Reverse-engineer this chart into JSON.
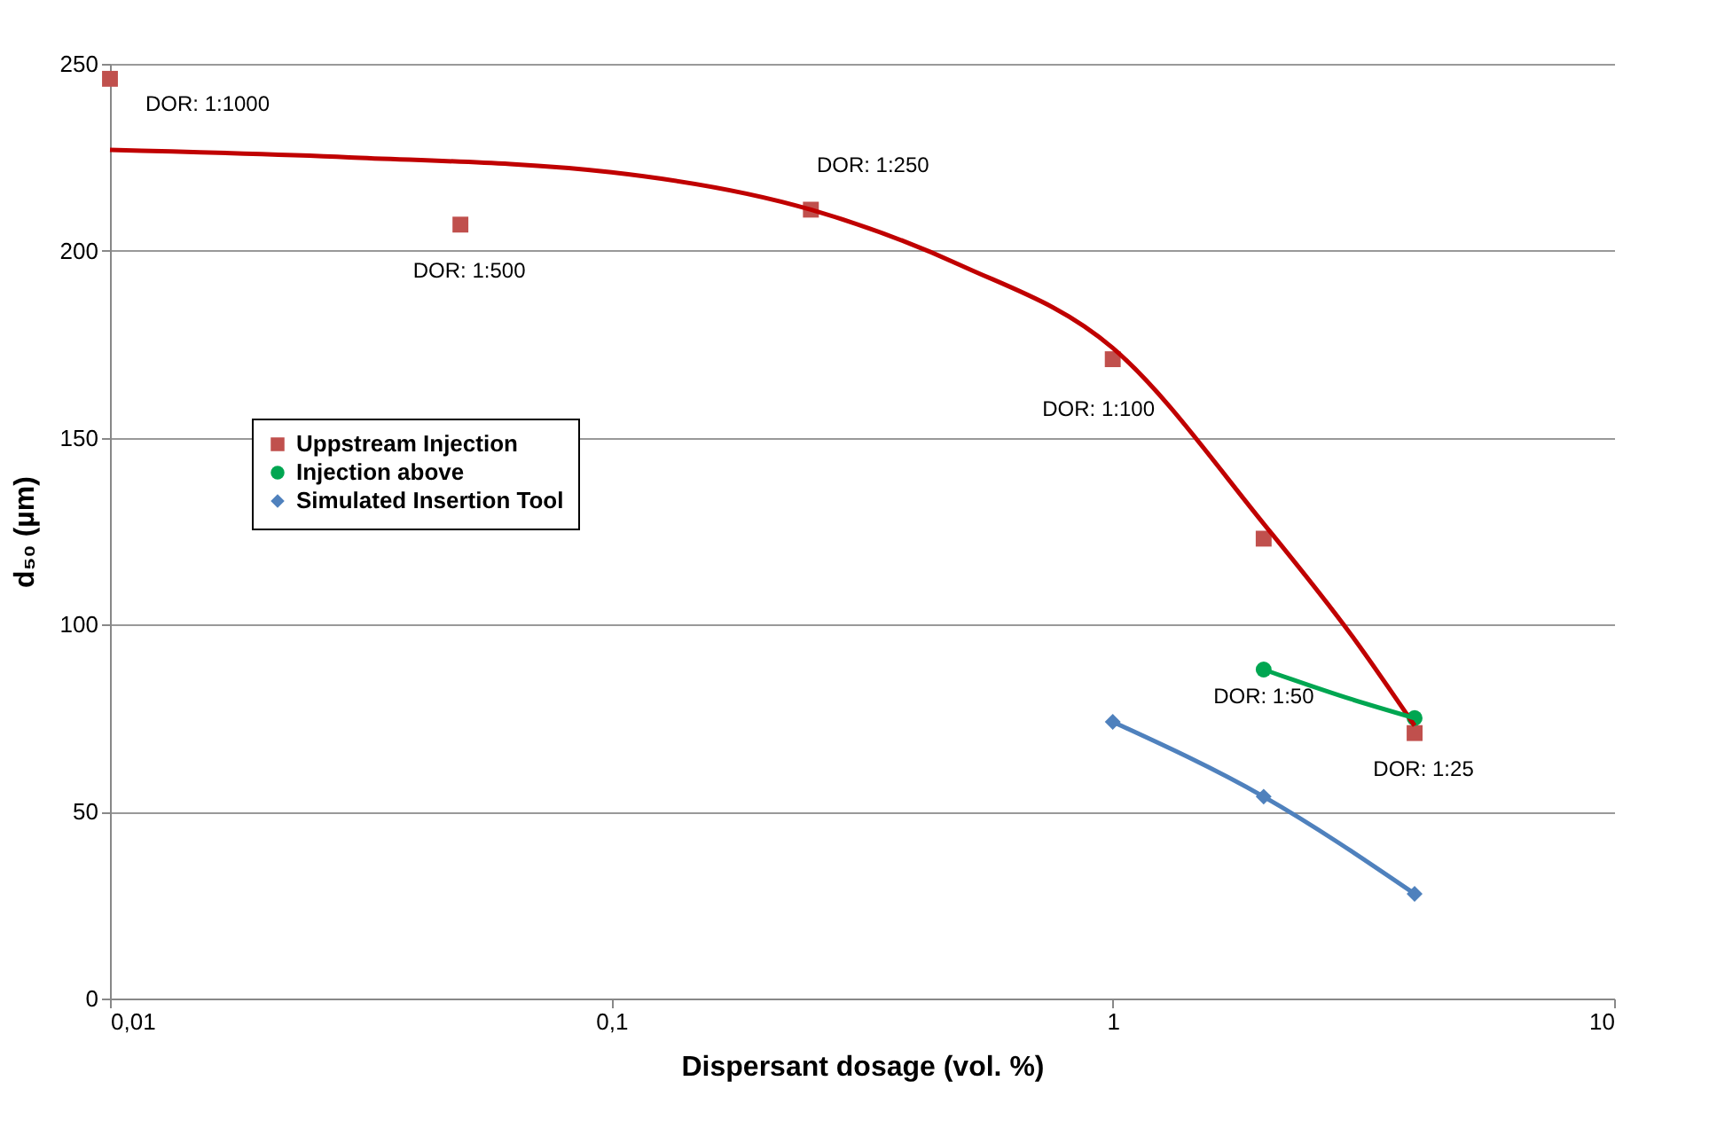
{
  "chart_data": {
    "type": "scatter",
    "xlabel": "Dispersant dosage (vol. %)",
    "ylabel": "d₅₀ (µm)",
    "log": "x",
    "xlim": [
      0.01,
      10
    ],
    "xticks": [
      {
        "value": 0.01,
        "label": "0,01"
      },
      {
        "value": 0.1,
        "label": "0,1"
      },
      1,
      10
    ],
    "ylim": [
      0,
      250
    ],
    "yticks": [
      0,
      50,
      100,
      150,
      200,
      250
    ],
    "grid": "y",
    "legend": "left",
    "series": [
      {
        "name": "Uppstream Injection",
        "marker": "square",
        "color": "#c0504d",
        "x": [
          0.01,
          0.05,
          0.25,
          1,
          2,
          4
        ],
        "values": [
          246,
          207,
          211,
          171,
          123,
          71
        ]
      },
      {
        "name": "Injection above",
        "marker": "circle",
        "color": "#00a651",
        "x": [
          2,
          4
        ],
        "values": [
          88,
          75
        ]
      },
      {
        "name": "Simulated Insertion Tool",
        "marker": "diamond",
        "color": "#4f81bd",
        "x": [
          1,
          2,
          4
        ],
        "values": [
          74,
          54,
          28
        ]
      },
      {
        "type": "line",
        "marker": "none",
        "line_style": "solid",
        "color": "#c00000",
        "x": [
          0.01,
          0.03,
          0.1,
          0.25,
          0.5,
          1,
          2,
          3,
          4
        ],
        "values": [
          227,
          225,
          221,
          211,
          196,
          174,
          127,
          97,
          73
        ]
      },
      {
        "type": "line",
        "marker": "none",
        "line_style": "solid",
        "color": "#00a651",
        "x": [
          2,
          3,
          4
        ],
        "values": [
          88,
          80,
          75
        ]
      },
      {
        "type": "line",
        "marker": "none",
        "line_style": "solid",
        "color": "#4f81bd",
        "x": [
          1,
          2,
          4
        ],
        "values": [
          74,
          54,
          28
        ]
      }
    ],
    "annotations": [
      {
        "text": "DOR: 1:1000",
        "x": 0.01,
        "y": 246
      },
      {
        "text": "DOR: 1:500",
        "x": 0.05,
        "y": 207
      },
      {
        "text": "DOR: 1:250",
        "x": 0.25,
        "y": 211
      },
      {
        "text": "DOR: 1:100",
        "x": 1,
        "y": 171
      },
      {
        "text": "DOR: 1:50",
        "x": 2,
        "y": 88
      },
      {
        "text": "DOR: 1:25",
        "x": 4,
        "y": 71
      }
    ]
  }
}
